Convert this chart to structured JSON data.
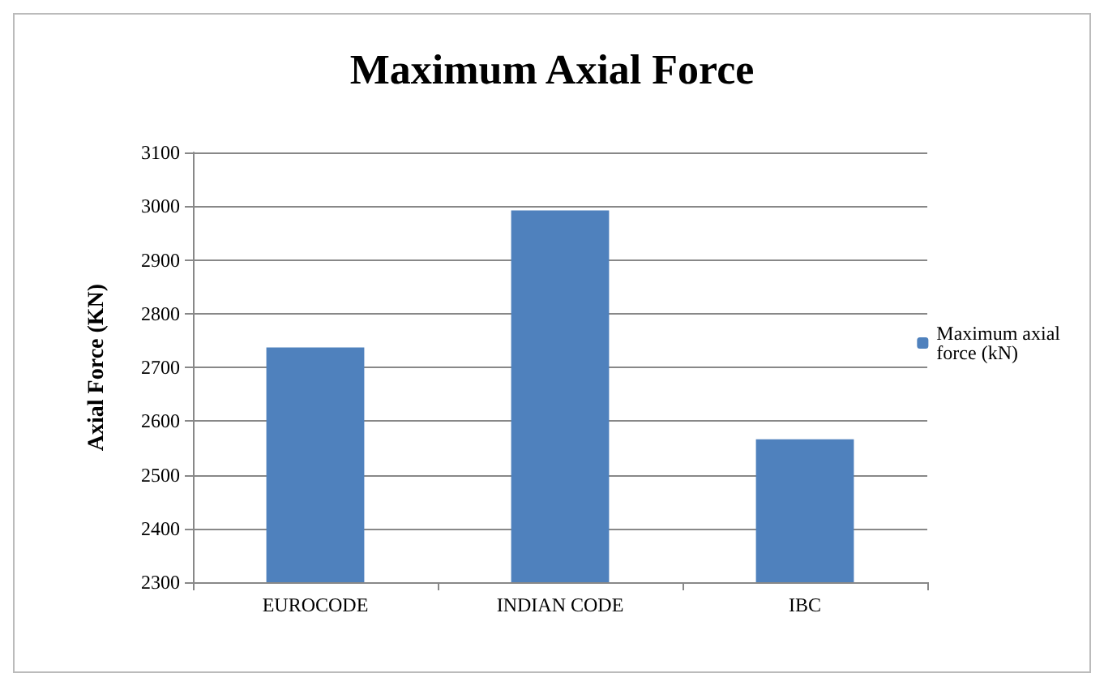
{
  "chart_data": {
    "type": "bar",
    "title": "Maximum Axial Force",
    "ylabel": "Axial Force (KN)",
    "categories": [
      "EUROCODE",
      "INDIAN CODE",
      "IBC"
    ],
    "series": [
      {
        "name": "Maximum axial force (kN)",
        "color": "#4f81bd",
        "values": [
          2737,
          2992,
          2566
        ]
      }
    ],
    "ylim": [
      2300,
      3100
    ],
    "yticks": [
      2300,
      2400,
      2500,
      2600,
      2700,
      2800,
      2900,
      3000,
      3100
    ],
    "grid": "y",
    "legend": "right"
  }
}
